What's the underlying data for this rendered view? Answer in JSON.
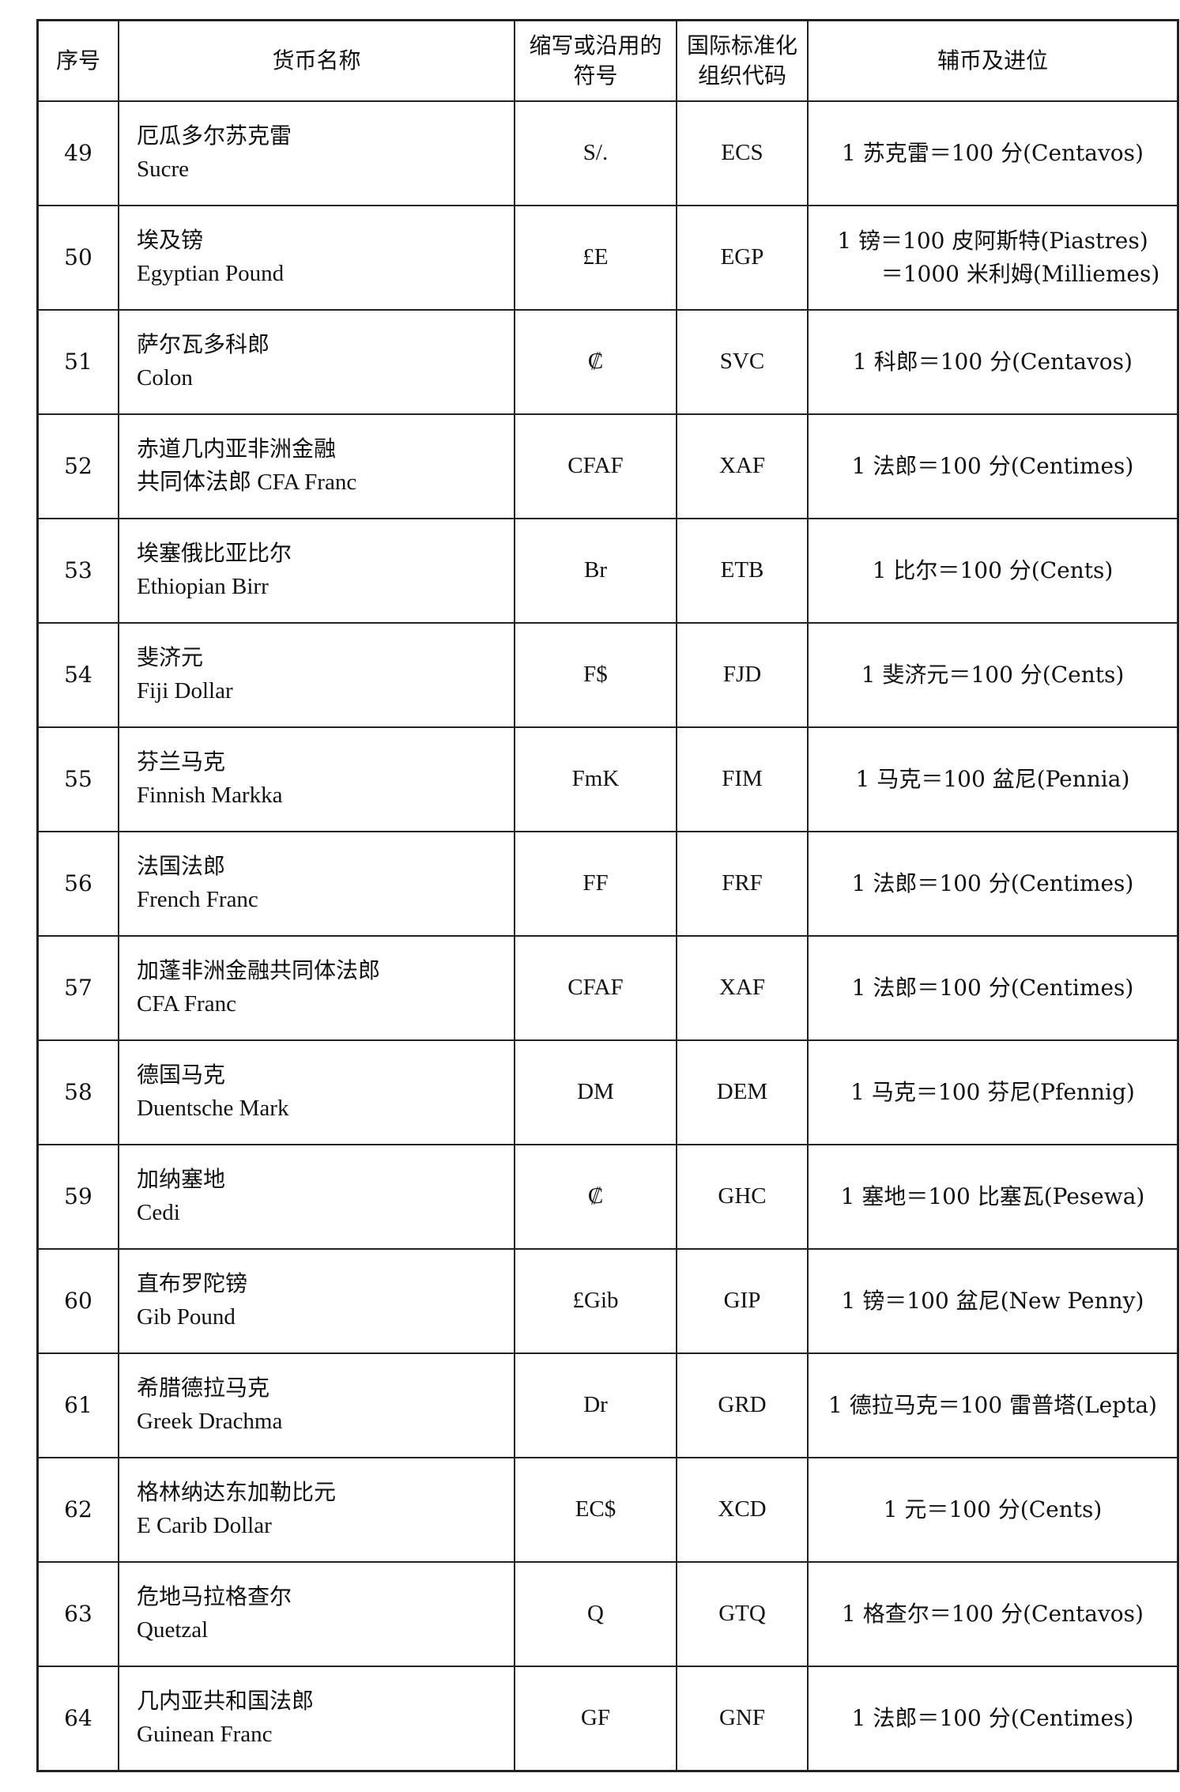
{
  "header": [
    "序号",
    "货币名称",
    "缩写或沿用的符号",
    "国际标准化组织代码",
    "辅币及进位"
  ],
  "rows": [
    {
      "no": "49",
      "cn": "厄瓜多尔苏克雷",
      "en": "Sucre",
      "symbol": "S/.",
      "code": "ECS",
      "sub": "1 苏克雷＝100 分(Centavos)"
    },
    {
      "no": "50",
      "cn": "埃及镑",
      "en": "Egyptian Pound",
      "symbol": "£E",
      "code": "EGP",
      "sub": "1 镑＝100 皮阿斯特(Piastres)",
      "sub2": "＝1000 米利姆(Milliemes)"
    },
    {
      "no": "51",
      "cn": "萨尔瓦多科郎",
      "en": "Colon",
      "symbol": "₡",
      "code": "SVC",
      "sub": "1 科郎＝100 分(Centavos)"
    },
    {
      "no": "52",
      "cn": "赤道几内亚非洲金融",
      "en": "共同体法郎 CFA Franc",
      "symbol": "CFAF",
      "code": "XAF",
      "sub": "1 法郎＝100 分(Centimes)"
    },
    {
      "no": "53",
      "cn": "埃塞俄比亚比尔",
      "en": "Ethiopian Birr",
      "symbol": "Br",
      "code": "ETB",
      "sub": "1 比尔＝100 分(Cents)"
    },
    {
      "no": "54",
      "cn": "斐济元",
      "en": "Fiji Dollar",
      "symbol": "F$",
      "code": "FJD",
      "sub": "1 斐济元＝100 分(Cents)"
    },
    {
      "no": "55",
      "cn": "芬兰马克",
      "en": "Finnish Markka",
      "symbol": "FmK",
      "code": "FIM",
      "sub": "1 马克＝100 盆尼(Pennia)"
    },
    {
      "no": "56",
      "cn": "法国法郎",
      "en": "French Franc",
      "symbol": "FF",
      "code": "FRF",
      "sub": "1 法郎＝100 分(Centimes)"
    },
    {
      "no": "57",
      "cn": "加蓬非洲金融共同体法郎",
      "en": "CFA Franc",
      "symbol": "CFAF",
      "code": "XAF",
      "sub": "1 法郎＝100 分(Centimes)"
    },
    {
      "no": "58",
      "cn": "德国马克",
      "en": "Duentsche Mark",
      "symbol": "DM",
      "code": "DEM",
      "sub": "1 马克＝100 芬尼(Pfennig)"
    },
    {
      "no": "59",
      "cn": "加纳塞地",
      "en": "Cedi",
      "symbol": "₡",
      "code": "GHC",
      "sub": "1 塞地＝100 比塞瓦(Pesewa)"
    },
    {
      "no": "60",
      "cn": "直布罗陀镑",
      "en": "Gib Pound",
      "symbol": "£Gib",
      "code": "GIP",
      "sub": "1 镑＝100 盆尼(New Penny)"
    },
    {
      "no": "61",
      "cn": "希腊德拉马克",
      "en": "Greek Drachma",
      "symbol": "Dr",
      "code": "GRD",
      "sub": "1 德拉马克＝100 雷普塔(Lepta)"
    },
    {
      "no": "62",
      "cn": "格林纳达东加勒比元",
      "en": "E Carib Dollar",
      "symbol": "EC$",
      "code": "XCD",
      "sub": "1 元＝100 分(Cents)"
    },
    {
      "no": "63",
      "cn": "危地马拉格查尔",
      "en": "Quetzal",
      "symbol": "Q",
      "code": "GTQ",
      "sub": "1 格查尔＝100 分(Centavos)"
    },
    {
      "no": "64",
      "cn": "几内亚共和国法郎",
      "en": "Guinean Franc",
      "symbol": "GF",
      "code": "GNF",
      "sub": "1 法郎＝100 分(Centimes)"
    }
  ]
}
